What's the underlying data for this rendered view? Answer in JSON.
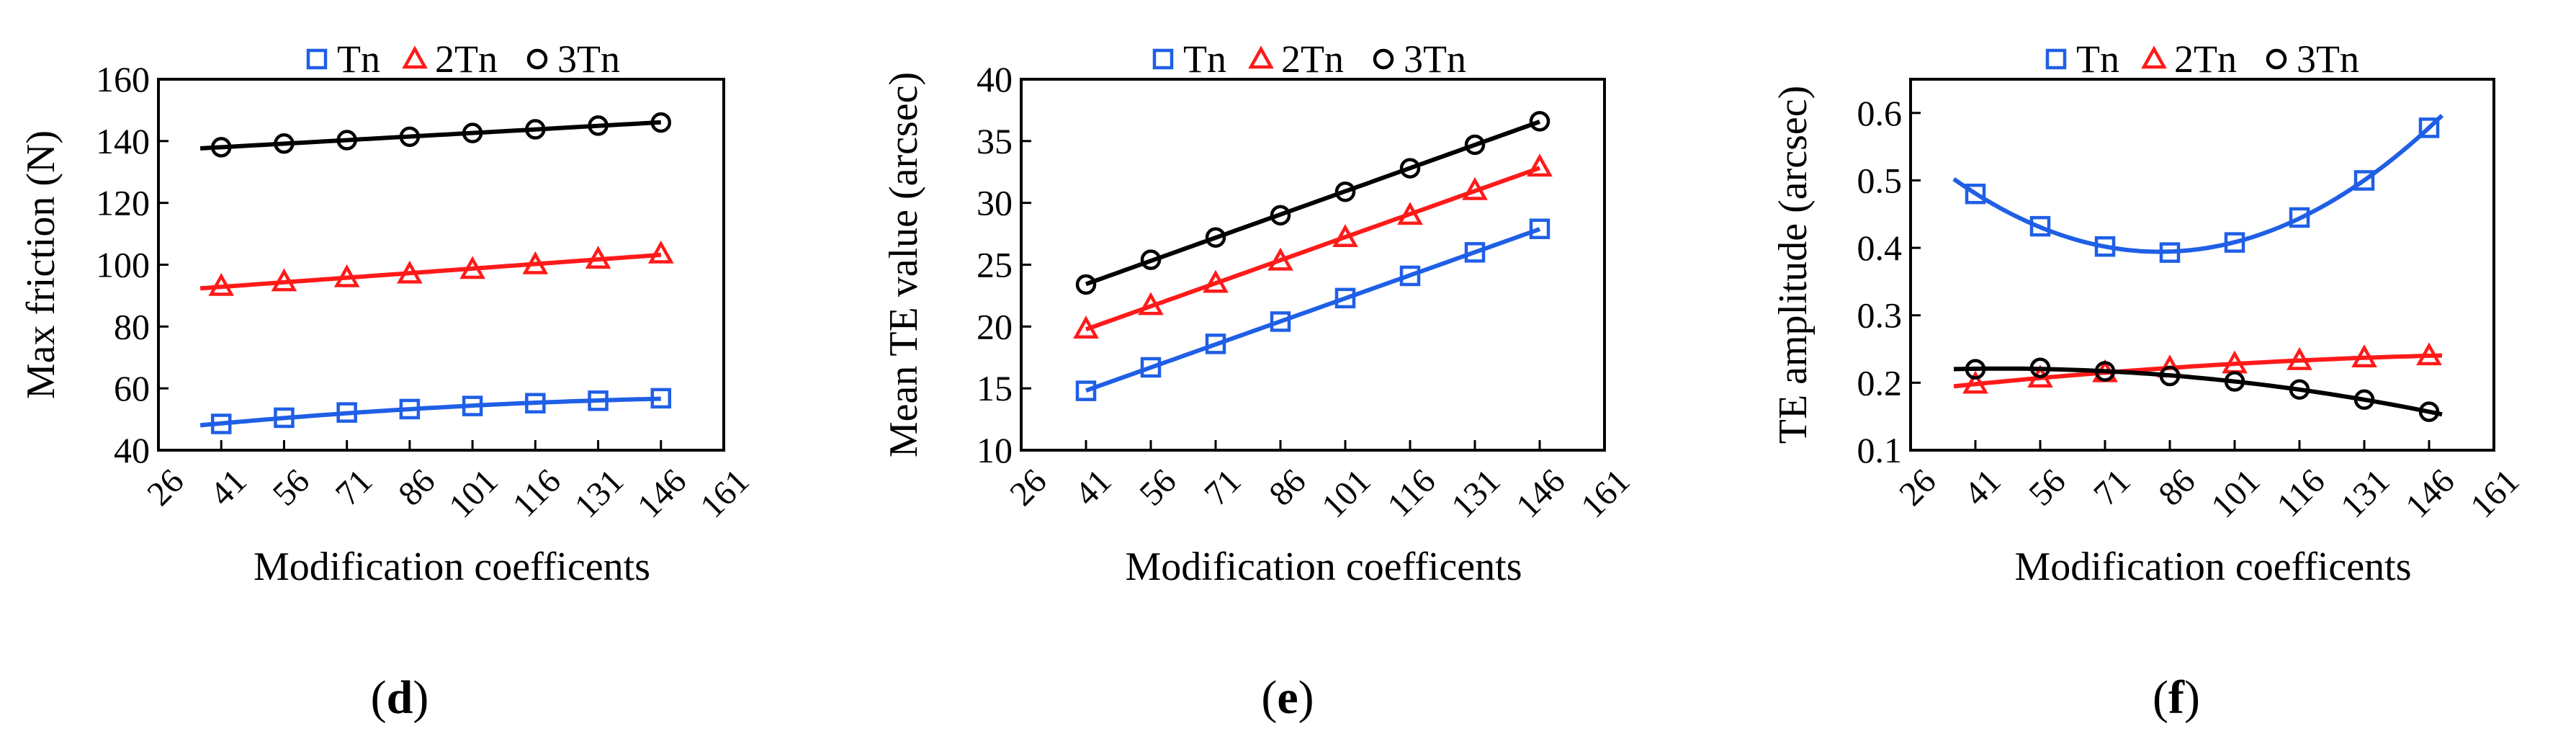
{
  "colors": {
    "tn": "#1f5fe6",
    "two_tn": "#ff1a1a",
    "three_tn": "#000000"
  },
  "chart_data": [
    {
      "type": "line",
      "panel": "d",
      "xlabel": "Modification coefficents",
      "ylabel": "Max friction  (N)",
      "xlim": [
        26,
        161
      ],
      "xticks": [
        26,
        41,
        56,
        71,
        86,
        101,
        116,
        131,
        146,
        161
      ],
      "ylim": [
        40,
        160
      ],
      "yticks": [
        40,
        60,
        80,
        100,
        120,
        140,
        160
      ],
      "legend_placement": "top",
      "x": [
        41,
        56,
        71,
        86,
        101,
        116,
        131,
        146
      ],
      "series": [
        {
          "name": "Tn",
          "marker": "square",
          "color": "#1f5fe6",
          "values": [
            48.5,
            50.5,
            52.2,
            53.3,
            54.3,
            55.2,
            56.0,
            56.8
          ],
          "fit_order": 2
        },
        {
          "name": "2Tn",
          "marker": "triangle",
          "color": "#ff1a1a",
          "values": [
            93.0,
            94.5,
            95.8,
            97.0,
            98.5,
            100.0,
            101.8,
            103.5
          ],
          "fit_order": 1
        },
        {
          "name": "3Tn",
          "marker": "circle",
          "color": "#000000",
          "values": [
            138.0,
            139.2,
            140.3,
            141.4,
            142.6,
            143.8,
            145.0,
            146.0
          ],
          "fit_order": 1
        }
      ],
      "panel_label": {
        "open": "(",
        "letter": "d",
        "close": ")"
      }
    },
    {
      "type": "line",
      "panel": "e",
      "xlabel": "Modification coefficents",
      "ylabel": "Mean TE value (arcsec)",
      "xlim": [
        26,
        161
      ],
      "xticks": [
        26,
        41,
        56,
        71,
        86,
        101,
        116,
        131,
        146,
        161
      ],
      "ylim": [
        10,
        40
      ],
      "yticks": [
        10,
        15,
        20,
        25,
        30,
        35,
        40
      ],
      "legend_placement": "top",
      "x": [
        41,
        56,
        71,
        86,
        101,
        116,
        131,
        146
      ],
      "series": [
        {
          "name": "Tn",
          "marker": "square",
          "color": "#1f5fe6",
          "values": [
            14.8,
            16.7,
            18.6,
            20.4,
            22.3,
            24.1,
            26.0,
            27.9
          ],
          "fit_order": 1
        },
        {
          "name": "2Tn",
          "marker": "triangle",
          "color": "#ff1a1a",
          "values": [
            19.8,
            21.7,
            23.5,
            25.3,
            27.2,
            29.0,
            31.0,
            32.9
          ],
          "fit_order": 1
        },
        {
          "name": "3Tn",
          "marker": "circle",
          "color": "#000000",
          "values": [
            23.4,
            25.4,
            27.2,
            29.0,
            30.9,
            32.8,
            34.7,
            36.6
          ],
          "fit_order": 1
        }
      ],
      "panel_label": {
        "open": "(",
        "letter": "e",
        "close": ")"
      }
    },
    {
      "type": "line",
      "panel": "f",
      "xlabel": "Modification coefficents",
      "ylabel": "TE amplitude (arcsec)",
      "xlim": [
        26,
        161
      ],
      "xticks": [
        26,
        41,
        56,
        71,
        86,
        101,
        116,
        131,
        146,
        161
      ],
      "ylim": [
        0.1,
        0.65
      ],
      "yticks": [
        0.1,
        0.2,
        0.3,
        0.4,
        0.5,
        0.6
      ],
      "legend_placement": "top",
      "x": [
        41,
        56,
        71,
        86,
        101,
        116,
        131,
        146
      ],
      "series": [
        {
          "name": "Tn",
          "marker": "square",
          "color": "#1f5fe6",
          "values": [
            0.48,
            0.432,
            0.402,
            0.393,
            0.408,
            0.445,
            0.5,
            0.578
          ],
          "fit_order": 2
        },
        {
          "name": "2Tn",
          "marker": "triangle",
          "color": "#ff1a1a",
          "values": [
            0.198,
            0.207,
            0.215,
            0.222,
            0.228,
            0.233,
            0.237,
            0.24
          ],
          "fit_order": 2
        },
        {
          "name": "3Tn",
          "marker": "circle",
          "color": "#000000",
          "values": [
            0.22,
            0.222,
            0.217,
            0.21,
            0.202,
            0.19,
            0.175,
            0.157
          ],
          "fit_order": 2
        }
      ],
      "panel_label": {
        "open": "(",
        "letter": "f",
        "close": ")"
      }
    }
  ]
}
